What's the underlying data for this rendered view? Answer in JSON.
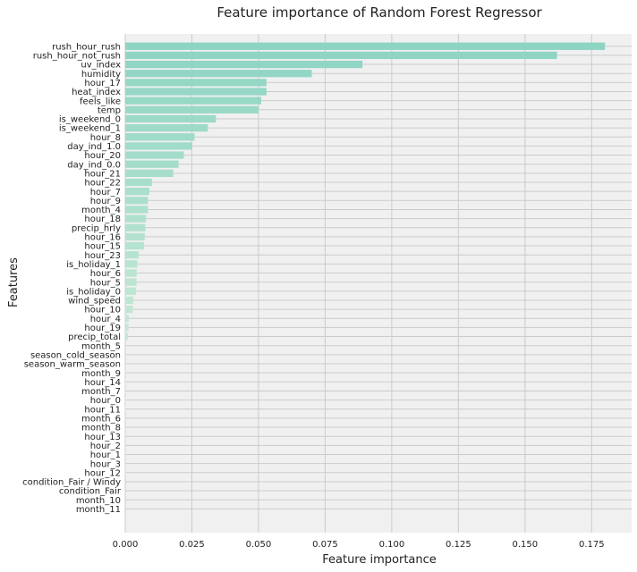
{
  "chart_data": {
    "type": "bar",
    "orientation": "horizontal",
    "title": "Feature importance of Random Forest Regressor",
    "xlabel": "Feature importance",
    "ylabel": "Features",
    "xlim": [
      0,
      0.19
    ],
    "xticks": [
      "0.000",
      "0.025",
      "0.050",
      "0.075",
      "0.100",
      "0.125",
      "0.150",
      "0.175"
    ],
    "grid": true,
    "colormap": {
      "start": "#8ed4c3",
      "end": "#e6f6e0"
    },
    "background": "#f0f0f0",
    "gridline_color": "#cbcbcb",
    "categories": [
      "rush_hour_rush",
      "rush_hour_not_rush",
      "uv_index",
      "humidity",
      "hour_17",
      "heat_index",
      "feels_like",
      "temp",
      "is_weekend_0",
      "is_weekend_1",
      "hour_8",
      "day_ind_1.0",
      "hour_20",
      "day_ind_0.0",
      "hour_21",
      "hour_22",
      "hour_7",
      "hour_9",
      "month_4",
      "hour_18",
      "precip_hrly",
      "hour_16",
      "hour_15",
      "hour_23",
      "is_holiday_1",
      "hour_6",
      "hour_5",
      "is_holiday_0",
      "wind_speed",
      "hour_10",
      "hour_4",
      "hour_19",
      "precip_total",
      "month_5",
      "season_cold_season",
      "season_warm_season",
      "month_9",
      "hour_14",
      "month_7",
      "hour_0",
      "hour_11",
      "month_6",
      "month_8",
      "hour_13",
      "hour_2",
      "hour_1",
      "hour_3",
      "hour_12",
      "condition_Fair / Windy",
      "condition_Fair",
      "month_10",
      "month_11"
    ],
    "values": [
      0.18,
      0.162,
      0.089,
      0.07,
      0.053,
      0.053,
      0.051,
      0.05,
      0.034,
      0.031,
      0.026,
      0.025,
      0.022,
      0.02,
      0.018,
      0.01,
      0.009,
      0.0085,
      0.0085,
      0.0078,
      0.0075,
      0.0073,
      0.007,
      0.005,
      0.0045,
      0.0043,
      0.0042,
      0.004,
      0.003,
      0.0028,
      0.0013,
      0.0012,
      0.001,
      0.0003,
      0.0003,
      0.0003,
      0.0002,
      0.0002,
      0.0002,
      0.0002,
      0.0002,
      0.0001,
      0.0001,
      0.0001,
      0.0001,
      0.0001,
      0.0001,
      0.0001,
      0.0,
      0.0,
      0.0,
      0.0
    ]
  }
}
